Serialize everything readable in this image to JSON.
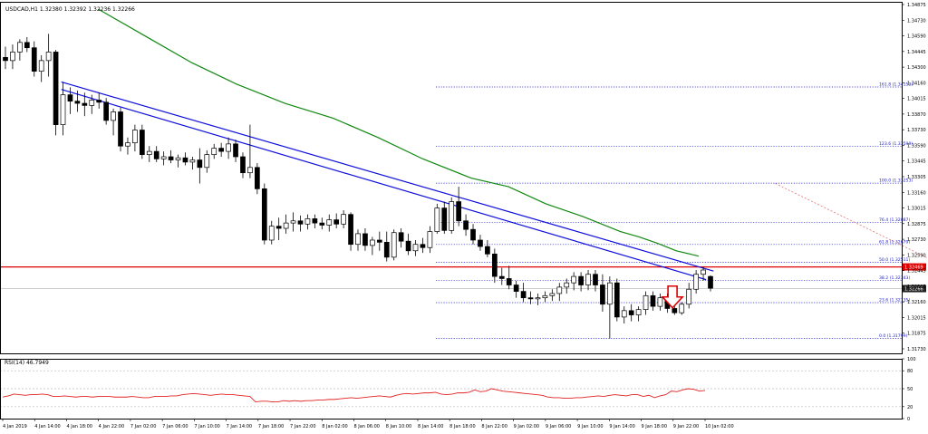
{
  "main_title": "USDCAD,H1  1.32380 1.32392 1.32236 1.32266",
  "rsi_title": "RSI(14) 46.7949",
  "colors": {
    "background": "#ffffff",
    "frame": "#000000",
    "candle_up": "#ffffff",
    "candle_down": "#000000",
    "candle_outline": "#000000",
    "ma": "#118811",
    "trendline": "#1010dd",
    "fib": "#2222cc",
    "resistance": "#e00000",
    "rsi_line": "#e22222",
    "arrow": "#e00000",
    "fib_diagonal": "#e06060",
    "level_dotted": "#bbbbbb"
  },
  "chart_data": [
    {
      "type": "candlestick",
      "title": "USDCAD,H1  1.32380 1.32392 1.32236 1.32266",
      "ylim": [
        1.3166,
        1.3495
      ],
      "y_ticks": [
        "1.34875",
        "1.34730",
        "1.34590",
        "1.34445",
        "1.34300",
        "1.34160",
        "1.34015",
        "1.33870",
        "1.33730",
        "1.33590",
        "1.33445",
        "1.33305",
        "1.33160",
        "1.33015",
        "1.32875",
        "1.32730",
        "1.32590",
        "1.32445",
        "1.32305",
        "1.32160",
        "1.32015",
        "1.31875",
        "1.31730"
      ],
      "x_ticks": [
        "4 Jan 2019",
        "4 Jan 14:00",
        "4 Jan 18:00",
        "4 Jan 22:00",
        "7 Jan 02:00",
        "7 Jan 06:00",
        "7 Jan 10:00",
        "7 Jan 14:00",
        "7 Jan 18:00",
        "7 Jan 22:00",
        "8 Jan 02:00",
        "8 Jan 06:00",
        "8 Jan 10:00",
        "8 Jan 14:00",
        "8 Jan 18:00",
        "8 Jan 22:00",
        "9 Jan 02:00",
        "9 Jan 06:00",
        "9 Jan 10:00",
        "9 Jan 14:00",
        "9 Jan 18:00",
        "9 Jan 22:00",
        "10 Jan 02:00"
      ],
      "candles": [
        {
          "o": 1.3443,
          "h": 1.3453,
          "l": 1.3432,
          "c": 1.344
        },
        {
          "o": 1.344,
          "h": 1.3455,
          "l": 1.3432,
          "c": 1.3448
        },
        {
          "o": 1.3448,
          "h": 1.346,
          "l": 1.344,
          "c": 1.3457
        },
        {
          "o": 1.3457,
          "h": 1.3462,
          "l": 1.3448,
          "c": 1.3452
        },
        {
          "o": 1.3452,
          "h": 1.3458,
          "l": 1.3425,
          "c": 1.343
        },
        {
          "o": 1.343,
          "h": 1.3445,
          "l": 1.342,
          "c": 1.344
        },
        {
          "o": 1.344,
          "h": 1.3465,
          "l": 1.3425,
          "c": 1.3448
        },
        {
          "o": 1.3448,
          "h": 1.345,
          "l": 1.337,
          "c": 1.338
        },
        {
          "o": 1.338,
          "h": 1.342,
          "l": 1.337,
          "c": 1.3408
        },
        {
          "o": 1.3408,
          "h": 1.3415,
          "l": 1.339,
          "c": 1.3402
        },
        {
          "o": 1.3402,
          "h": 1.3412,
          "l": 1.3392,
          "c": 1.34
        },
        {
          "o": 1.34,
          "h": 1.341,
          "l": 1.3388,
          "c": 1.3398
        },
        {
          "o": 1.3398,
          "h": 1.3408,
          "l": 1.339,
          "c": 1.3403
        },
        {
          "o": 1.3403,
          "h": 1.341,
          "l": 1.3395,
          "c": 1.3401
        },
        {
          "o": 1.3401,
          "h": 1.3405,
          "l": 1.338,
          "c": 1.3384
        },
        {
          "o": 1.3384,
          "h": 1.3395,
          "l": 1.337,
          "c": 1.3392
        },
        {
          "o": 1.3392,
          "h": 1.3396,
          "l": 1.3355,
          "c": 1.336
        },
        {
          "o": 1.336,
          "h": 1.3368,
          "l": 1.3352,
          "c": 1.3363
        },
        {
          "o": 1.3363,
          "h": 1.338,
          "l": 1.3355,
          "c": 1.3375
        },
        {
          "o": 1.3375,
          "h": 1.338,
          "l": 1.3348,
          "c": 1.3352
        },
        {
          "o": 1.3352,
          "h": 1.336,
          "l": 1.3345,
          "c": 1.3355
        },
        {
          "o": 1.3355,
          "h": 1.336,
          "l": 1.3345,
          "c": 1.3348
        },
        {
          "o": 1.3348,
          "h": 1.3355,
          "l": 1.3342,
          "c": 1.335
        },
        {
          "o": 1.335,
          "h": 1.3356,
          "l": 1.3344,
          "c": 1.3347
        },
        {
          "o": 1.3347,
          "h": 1.3352,
          "l": 1.334,
          "c": 1.3349
        },
        {
          "o": 1.3349,
          "h": 1.3354,
          "l": 1.3342,
          "c": 1.3345
        },
        {
          "o": 1.3345,
          "h": 1.335,
          "l": 1.3338,
          "c": 1.3347
        },
        {
          "o": 1.3347,
          "h": 1.3358,
          "l": 1.3325,
          "c": 1.334
        },
        {
          "o": 1.334,
          "h": 1.3356,
          "l": 1.3335,
          "c": 1.3352
        },
        {
          "o": 1.3352,
          "h": 1.3362,
          "l": 1.3348,
          "c": 1.3358
        },
        {
          "o": 1.3358,
          "h": 1.3363,
          "l": 1.335,
          "c": 1.3355
        },
        {
          "o": 1.3355,
          "h": 1.3368,
          "l": 1.3348,
          "c": 1.3362
        },
        {
          "o": 1.3362,
          "h": 1.3366,
          "l": 1.3345,
          "c": 1.335
        },
        {
          "o": 1.335,
          "h": 1.3354,
          "l": 1.333,
          "c": 1.3335
        },
        {
          "o": 1.3335,
          "h": 1.338,
          "l": 1.333,
          "c": 1.334
        },
        {
          "o": 1.334,
          "h": 1.3344,
          "l": 1.3315,
          "c": 1.332
        },
        {
          "o": 1.332,
          "h": 1.3325,
          "l": 1.3268,
          "c": 1.3272
        },
        {
          "o": 1.3272,
          "h": 1.329,
          "l": 1.3268,
          "c": 1.3285
        },
        {
          "o": 1.3285,
          "h": 1.3293,
          "l": 1.3272,
          "c": 1.3283
        },
        {
          "o": 1.3283,
          "h": 1.3296,
          "l": 1.3278,
          "c": 1.3288
        },
        {
          "o": 1.3288,
          "h": 1.3298,
          "l": 1.328,
          "c": 1.329
        },
        {
          "o": 1.329,
          "h": 1.3295,
          "l": 1.328,
          "c": 1.3287
        },
        {
          "o": 1.3287,
          "h": 1.3296,
          "l": 1.3282,
          "c": 1.3292
        },
        {
          "o": 1.3292,
          "h": 1.3296,
          "l": 1.3283,
          "c": 1.3288
        },
        {
          "o": 1.3288,
          "h": 1.3293,
          "l": 1.3282,
          "c": 1.3286
        },
        {
          "o": 1.3286,
          "h": 1.3296,
          "l": 1.328,
          "c": 1.3291
        },
        {
          "o": 1.3291,
          "h": 1.3297,
          "l": 1.3283,
          "c": 1.3287
        },
        {
          "o": 1.3287,
          "h": 1.33,
          "l": 1.3283,
          "c": 1.3296
        },
        {
          "o": 1.3296,
          "h": 1.3298,
          "l": 1.3262,
          "c": 1.3268
        },
        {
          "o": 1.3268,
          "h": 1.3282,
          "l": 1.3262,
          "c": 1.3278
        },
        {
          "o": 1.3278,
          "h": 1.3283,
          "l": 1.3262,
          "c": 1.3267
        },
        {
          "o": 1.3267,
          "h": 1.3275,
          "l": 1.3258,
          "c": 1.3272
        },
        {
          "o": 1.3272,
          "h": 1.328,
          "l": 1.3262,
          "c": 1.327
        },
        {
          "o": 1.327,
          "h": 1.328,
          "l": 1.3252,
          "c": 1.3256
        },
        {
          "o": 1.3256,
          "h": 1.3282,
          "l": 1.3253,
          "c": 1.3279
        },
        {
          "o": 1.3279,
          "h": 1.3283,
          "l": 1.3265,
          "c": 1.3271
        },
        {
          "o": 1.3271,
          "h": 1.3278,
          "l": 1.3258,
          "c": 1.3262
        },
        {
          "o": 1.3262,
          "h": 1.3272,
          "l": 1.3257,
          "c": 1.3268
        },
        {
          "o": 1.3268,
          "h": 1.3274,
          "l": 1.326,
          "c": 1.3265
        },
        {
          "o": 1.3265,
          "h": 1.3285,
          "l": 1.326,
          "c": 1.328
        },
        {
          "o": 1.328,
          "h": 1.3306,
          "l": 1.3278,
          "c": 1.3302
        },
        {
          "o": 1.3302,
          "h": 1.3308,
          "l": 1.3278,
          "c": 1.3281
        },
        {
          "o": 1.3281,
          "h": 1.3312,
          "l": 1.3278,
          "c": 1.3308
        },
        {
          "o": 1.3308,
          "h": 1.3322,
          "l": 1.3285,
          "c": 1.329
        },
        {
          "o": 1.329,
          "h": 1.3296,
          "l": 1.3276,
          "c": 1.3282
        },
        {
          "o": 1.3282,
          "h": 1.3287,
          "l": 1.3268,
          "c": 1.3272
        },
        {
          "o": 1.3272,
          "h": 1.3277,
          "l": 1.3262,
          "c": 1.3266
        },
        {
          "o": 1.3266,
          "h": 1.3272,
          "l": 1.3256,
          "c": 1.3259
        },
        {
          "o": 1.3259,
          "h": 1.3264,
          "l": 1.3232,
          "c": 1.3238
        },
        {
          "o": 1.3238,
          "h": 1.3246,
          "l": 1.323,
          "c": 1.3236
        },
        {
          "o": 1.3236,
          "h": 1.3248,
          "l": 1.3226,
          "c": 1.323
        },
        {
          "o": 1.323,
          "h": 1.3234,
          "l": 1.3218,
          "c": 1.3224
        },
        {
          "o": 1.3224,
          "h": 1.3232,
          "l": 1.3214,
          "c": 1.3218
        },
        {
          "o": 1.3218,
          "h": 1.3224,
          "l": 1.3212,
          "c": 1.3217
        },
        {
          "o": 1.3217,
          "h": 1.3222,
          "l": 1.3211,
          "c": 1.3218
        },
        {
          "o": 1.3218,
          "h": 1.3224,
          "l": 1.3214,
          "c": 1.322
        },
        {
          "o": 1.322,
          "h": 1.3226,
          "l": 1.3215,
          "c": 1.3222
        },
        {
          "o": 1.3222,
          "h": 1.3232,
          "l": 1.3215,
          "c": 1.3228
        },
        {
          "o": 1.3228,
          "h": 1.3236,
          "l": 1.3222,
          "c": 1.3232
        },
        {
          "o": 1.3232,
          "h": 1.3242,
          "l": 1.3225,
          "c": 1.3238
        },
        {
          "o": 1.3238,
          "h": 1.3242,
          "l": 1.3224,
          "c": 1.323
        },
        {
          "o": 1.323,
          "h": 1.3244,
          "l": 1.3225,
          "c": 1.324
        },
        {
          "o": 1.324,
          "h": 1.3244,
          "l": 1.3224,
          "c": 1.323
        },
        {
          "o": 1.323,
          "h": 1.324,
          "l": 1.3205,
          "c": 1.3212
        },
        {
          "o": 1.3212,
          "h": 1.3238,
          "l": 1.318,
          "c": 1.3232
        },
        {
          "o": 1.3232,
          "h": 1.3236,
          "l": 1.3196,
          "c": 1.32
        },
        {
          "o": 1.32,
          "h": 1.321,
          "l": 1.3194,
          "c": 1.3206
        },
        {
          "o": 1.3206,
          "h": 1.3212,
          "l": 1.3196,
          "c": 1.3202
        },
        {
          "o": 1.3202,
          "h": 1.321,
          "l": 1.3196,
          "c": 1.3207
        },
        {
          "o": 1.3207,
          "h": 1.3224,
          "l": 1.3202,
          "c": 1.322
        },
        {
          "o": 1.322,
          "h": 1.3224,
          "l": 1.3206,
          "c": 1.321
        },
        {
          "o": 1.321,
          "h": 1.3222,
          "l": 1.3206,
          "c": 1.3218
        },
        {
          "o": 1.3218,
          "h": 1.3222,
          "l": 1.3204,
          "c": 1.3208
        },
        {
          "o": 1.3208,
          "h": 1.3214,
          "l": 1.3202,
          "c": 1.3204
        },
        {
          "o": 1.3204,
          "h": 1.3214,
          "l": 1.3202,
          "c": 1.3212
        },
        {
          "o": 1.3212,
          "h": 1.3232,
          "l": 1.3208,
          "c": 1.3226
        },
        {
          "o": 1.3226,
          "h": 1.3244,
          "l": 1.3222,
          "c": 1.324
        },
        {
          "o": 1.324,
          "h": 1.3247,
          "l": 1.3234,
          "c": 1.3244
        },
        {
          "o": 1.3238,
          "h": 1.3239,
          "l": 1.3224,
          "c": 1.3227
        }
      ],
      "moving_average": [
        [
          25,
          1.3488
        ],
        [
          38,
          1.3462
        ],
        [
          50,
          1.3438
        ],
        [
          62,
          1.3418
        ],
        [
          75,
          1.34
        ],
        [
          88,
          1.3386
        ],
        [
          100,
          1.3368
        ],
        [
          112,
          1.3348
        ],
        [
          125,
          1.333
        ],
        [
          135,
          1.3322
        ],
        [
          145,
          1.3306
        ],
        [
          155,
          1.3294
        ],
        [
          165,
          1.328
        ],
        [
          170,
          1.3275
        ],
        [
          175,
          1.3269
        ],
        [
          180,
          1.3262
        ],
        [
          186,
          1.3257
        ]
      ],
      "trendlines": [
        {
          "from": [
            15,
            1.342
          ],
          "to": [
            190,
            1.3243
          ]
        },
        {
          "from": [
            15,
            1.3413
          ],
          "to": [
            188,
            1.3235
          ]
        }
      ],
      "fib_levels": [
        {
          "label": "161.8 (1.34153)",
          "value": 1.34153
        },
        {
          "label": "123.6 (1.33599)",
          "value": 1.33599
        },
        {
          "label": "100.0 (1.33253)",
          "value": 1.33253
        },
        {
          "label": "76.4 (1.32887)",
          "value": 1.32887
        },
        {
          "label": "61.8 (1.32679)",
          "value": 1.32679
        },
        {
          "label": "50.0 (1.32511)",
          "value": 1.32511
        },
        {
          "label": "38.2 (1.32343)",
          "value": 1.32343
        },
        {
          "label": "23.6 (1.32135)",
          "value": 1.32135
        },
        {
          "label": "0.0 (1.31799)",
          "value": 1.31799
        }
      ],
      "fib_diagonal": {
        "from": [
          107,
          1.3325
        ],
        "to": [
          151,
          1.318
        ]
      },
      "resistance_line": {
        "value": 1.32469,
        "label": "1.32469"
      },
      "current_price": {
        "value": 1.32266,
        "label": "1.32266"
      },
      "annotations": [
        {
          "type": "arrow-down",
          "x": 179,
          "y": 1.3212
        }
      ]
    },
    {
      "type": "line",
      "title": "RSI(14) 46.7949",
      "ylim": [
        0,
        100
      ],
      "y_ticks": [
        "100",
        "80",
        "50",
        "20",
        "0"
      ],
      "levels": [
        80,
        50,
        20
      ],
      "values": [
        36,
        38,
        41,
        40,
        39,
        40,
        40,
        41,
        40,
        37,
        37,
        38,
        37,
        36,
        37,
        37,
        36,
        37,
        37,
        37,
        36,
        36,
        36,
        37,
        36,
        35,
        35,
        37,
        37,
        37,
        38,
        38,
        40,
        41,
        42,
        41,
        40,
        39,
        40,
        41,
        40,
        40,
        39,
        38,
        37,
        28,
        29,
        29,
        28,
        28,
        30,
        29,
        30,
        29,
        30,
        30,
        31,
        31,
        32,
        32,
        33,
        34,
        35,
        34,
        35,
        36,
        37,
        38,
        37,
        36,
        39,
        41,
        42,
        41,
        42,
        43,
        43,
        44,
        41,
        40,
        41,
        43,
        43,
        44,
        48,
        45,
        46,
        50,
        48,
        46,
        45,
        44,
        43,
        42,
        41,
        40,
        39,
        36,
        35,
        35,
        34,
        34,
        35,
        35,
        36,
        37,
        38,
        37,
        39,
        40,
        39,
        38,
        40,
        40,
        37,
        39,
        35,
        38,
        40,
        46,
        45,
        48,
        50,
        49,
        46,
        47
      ]
    }
  ]
}
